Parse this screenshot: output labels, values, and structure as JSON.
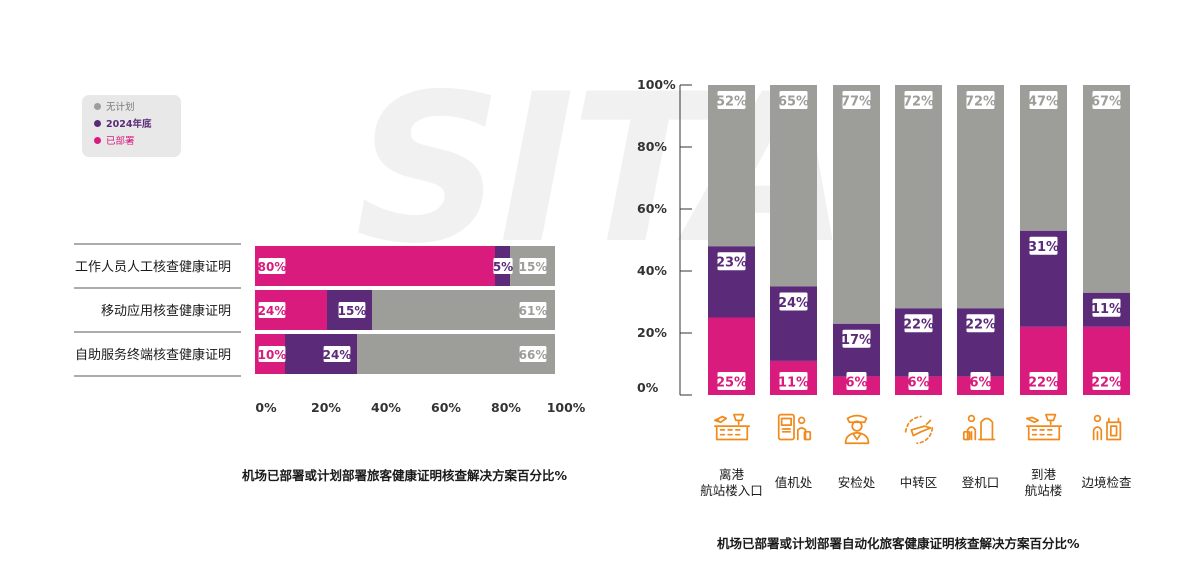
{
  "watermark": "SITA",
  "legend": {
    "items": [
      {
        "label": "无计划",
        "color": "#9d9d9a",
        "text_color": "#777777"
      },
      {
        "label": "2024年底",
        "color": "#5b2b7a",
        "text_color": "#5b2b7a"
      },
      {
        "label": "已部署",
        "color": "#d81b7d",
        "text_color": "#d81b7d"
      }
    ]
  },
  "colors": {
    "deployed": "#d81b7d",
    "planned": "#5b2b7a",
    "none": "#9d9d9a",
    "icon": "#f08a1c"
  },
  "chart_data": [
    {
      "type": "bar",
      "orientation": "horizontal",
      "stacked": true,
      "title": "机场已部署或计划部署旅客健康证明核查解决方案百分比%",
      "categories": [
        "工作人员人工核查健康证明",
        "移动应用核查健康证明",
        "自助服务终端核查健康证明"
      ],
      "series": [
        {
          "name": "已部署",
          "values": [
            80,
            24,
            10
          ]
        },
        {
          "name": "2024年底",
          "values": [
            5,
            15,
            24
          ]
        },
        {
          "name": "无计划",
          "values": [
            15,
            61,
            66
          ]
        }
      ],
      "xlim": [
        0,
        100
      ],
      "xticks": [
        "0%",
        "20%",
        "40%",
        "60%",
        "80%",
        "100%"
      ]
    },
    {
      "type": "bar",
      "orientation": "vertical",
      "stacked": true,
      "title": "机场已部署或计划部署自动化旅客健康证明核查解决方案百分比%",
      "categories": [
        "离港\n航站楼入口",
        "值机处",
        "安检处",
        "中转区",
        "登机口",
        "到港\n航站楼",
        "边境检查"
      ],
      "series": [
        {
          "name": "已部署",
          "values": [
            25,
            11,
            6,
            6,
            6,
            22,
            22
          ]
        },
        {
          "name": "2024年底",
          "values": [
            23,
            24,
            17,
            22,
            22,
            31,
            11
          ]
        },
        {
          "name": "无计划",
          "values": [
            52,
            65,
            77,
            72,
            72,
            47,
            67
          ]
        }
      ],
      "ylim": [
        0,
        100
      ],
      "yticks": [
        "0%",
        "20%",
        "40%",
        "60%",
        "80%",
        "100%"
      ],
      "icons": [
        "terminal-departure-icon",
        "check-in-kiosk-icon",
        "security-officer-icon",
        "transfer-plane-icon",
        "boarding-gate-icon",
        "terminal-arrival-icon",
        "border-control-icon"
      ]
    }
  ]
}
